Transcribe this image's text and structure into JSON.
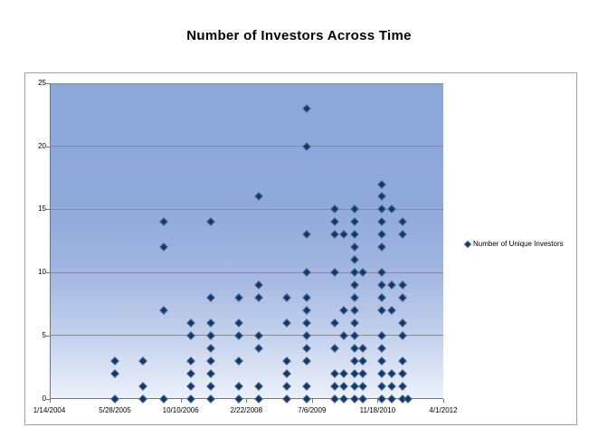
{
  "title": "Number of Investors Across Time",
  "legend": {
    "marker_icon": "diamond-marker-icon",
    "label": "Number of Unique Investors"
  },
  "colors": {
    "marker_fill": "#17375e",
    "marker_edge": "#4a6fa5",
    "plot_gradient_top": "#8ca8da",
    "plot_gradient_bottom": "#ecf1fa",
    "gridline": "#8b8b8b",
    "frame_border": "#a3a3a3",
    "text": "#000000"
  },
  "chart_data": {
    "type": "scatter",
    "title": "Number of Investors Across Time",
    "xlabel": "",
    "ylabel": "",
    "legend_position": "right",
    "grid": "horizontal",
    "y_axis": {
      "range": [
        0,
        25
      ],
      "ticks": [
        0,
        5,
        10,
        15,
        20,
        25
      ]
    },
    "x_axis": {
      "type": "date",
      "tick_labels": [
        "1/14/2004",
        "5/28/2005",
        "10/10/2006",
        "2/22/2008",
        "7/6/2009",
        "11/18/2010",
        "4/1/2012"
      ],
      "tick_days": [
        0,
        500,
        1000,
        1500,
        2000,
        2500,
        3000
      ],
      "range_days": [
        0,
        3000
      ],
      "epoch": "1/14/2004"
    },
    "series": [
      {
        "name": "Number of Unique Investors",
        "marker": "diamond",
        "columns": [
          {
            "days": 500,
            "values": [
              3,
              2,
              0
            ]
          },
          {
            "days": 716,
            "values": [
              3,
              1,
              0
            ]
          },
          {
            "days": 872,
            "values": [
              14,
              12,
              7,
              0
            ]
          },
          {
            "days": 1081,
            "values": [
              6,
              5,
              3,
              2,
              1,
              0
            ]
          },
          {
            "days": 1228,
            "values": [
              14,
              8,
              6,
              5,
              4,
              3,
              2,
              1,
              0
            ]
          },
          {
            "days": 1442,
            "values": [
              8,
              6,
              5,
              3,
              1,
              0
            ]
          },
          {
            "days": 1595,
            "values": [
              16,
              9,
              8,
              5,
              4,
              1,
              0
            ]
          },
          {
            "days": 1809,
            "values": [
              8,
              6,
              3,
              2,
              1,
              0
            ]
          },
          {
            "days": 1958,
            "values": [
              23,
              20,
              13,
              10,
              8,
              7,
              6,
              5,
              4,
              3,
              1,
              0
            ]
          },
          {
            "days": 2176,
            "values": [
              15,
              14,
              13,
              10,
              6,
              4,
              2,
              1,
              0
            ]
          },
          {
            "days": 2242,
            "values": [
              13,
              7,
              5,
              2,
              1,
              0
            ]
          },
          {
            "days": 2328,
            "values": [
              15,
              14,
              13,
              12,
              11,
              10,
              9,
              8,
              7,
              6,
              5,
              4,
              3,
              2,
              1,
              0
            ]
          },
          {
            "days": 2387,
            "values": [
              10,
              4,
              3,
              2,
              1,
              0
            ]
          },
          {
            "days": 2535,
            "values": [
              17,
              16,
              15,
              14,
              13,
              12,
              10,
              9,
              8,
              7,
              5,
              4,
              3,
              2,
              1,
              0
            ]
          },
          {
            "days": 2604,
            "values": [
              15,
              9,
              7,
              2,
              1,
              0
            ]
          },
          {
            "days": 2692,
            "values": [
              14,
              13,
              9,
              8,
              6,
              5,
              3,
              2,
              1,
              0
            ]
          },
          {
            "days": 2728,
            "values": [
              0
            ]
          }
        ]
      }
    ]
  }
}
